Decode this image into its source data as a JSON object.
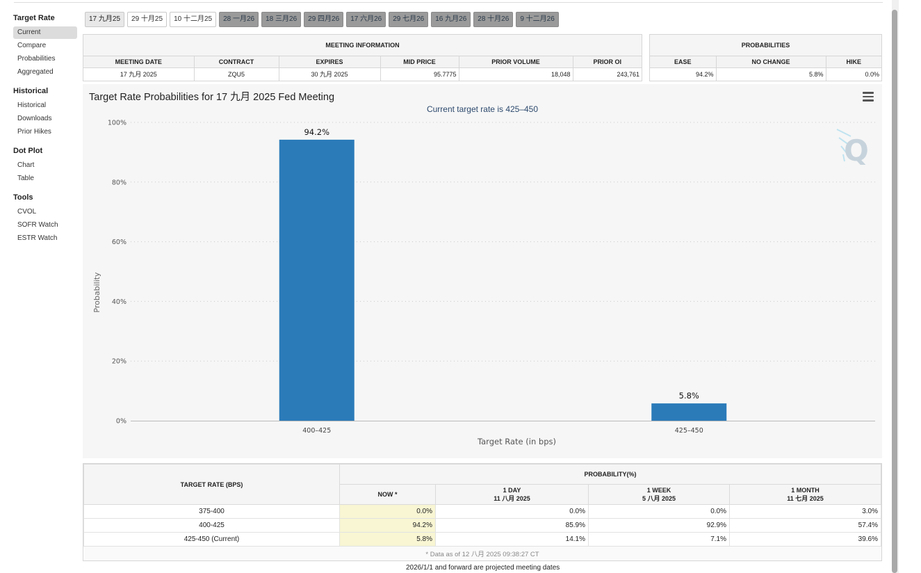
{
  "sidebar": {
    "groups": [
      {
        "heading": "Target Rate",
        "items": [
          "Current",
          "Compare",
          "Probabilities",
          "Aggregated"
        ]
      },
      {
        "heading": "Historical",
        "items": [
          "Historical",
          "Downloads",
          "Prior Hikes"
        ]
      },
      {
        "heading": "Dot Plot",
        "items": [
          "Chart",
          "Table"
        ]
      },
      {
        "heading": "Tools",
        "items": [
          "CVOL",
          "SOFR Watch",
          "ESTR Watch"
        ]
      }
    ],
    "active_item": "Current"
  },
  "tabs": [
    "17 九月25",
    "29 十月25",
    "10 十二月25",
    "28 一月26",
    "18 三月26",
    "29 四月26",
    "17 六月26",
    "29 七月26",
    "16 九月26",
    "28 十月26",
    "9 十二月26"
  ],
  "meeting_info": {
    "caption": "MEETING INFORMATION",
    "headers": [
      "MEETING DATE",
      "CONTRACT",
      "EXPIRES",
      "MID PRICE",
      "PRIOR VOLUME",
      "PRIOR OI"
    ],
    "row": [
      "17 九月 2025",
      "ZQU5",
      "30 九月 2025",
      "95.7775",
      "18,048",
      "243,761"
    ]
  },
  "probabilities": {
    "caption": "PROBABILITIES",
    "headers": [
      "EASE",
      "NO CHANGE",
      "HIKE"
    ],
    "row": [
      "94.2%",
      "5.8%",
      "0.0%"
    ]
  },
  "chart": {
    "title": "Target Rate Probabilities for 17 九月 2025 Fed Meeting",
    "subtitle": "Current target rate is 425–450",
    "menu_icon": "hamburger-menu-icon",
    "watermark": "Q",
    "bar_color": "#2b7bb9"
  },
  "chart_data": {
    "type": "bar",
    "categories": [
      "400–425",
      "425–450"
    ],
    "values": [
      94.2,
      5.8
    ],
    "data_labels": [
      "94.2%",
      "5.8%"
    ],
    "title": "Target Rate Probabilities for 17 九月 2025 Fed Meeting",
    "subtitle": "Current target rate is 425–450",
    "xlabel": "Target Rate (in bps)",
    "ylabel": "Probability",
    "ylim": [
      0,
      100
    ],
    "yticks": [
      "0%",
      "20%",
      "40%",
      "60%",
      "80%",
      "100%"
    ],
    "grid": true,
    "legend": "none"
  },
  "rate_table": {
    "col_target": "TARGET RATE (BPS)",
    "col_prob": "PROBABILITY(%)",
    "sub_headers": [
      {
        "label": "NOW *",
        "date": ""
      },
      {
        "label": "1 DAY",
        "date": "11 八月 2025"
      },
      {
        "label": "1 WEEK",
        "date": "5 八月 2025"
      },
      {
        "label": "1 MONTH",
        "date": "11 七月 2025"
      }
    ],
    "rows": [
      {
        "rate": "375-400",
        "now": "0.0%",
        "day": "0.0%",
        "week": "0.0%",
        "month": "3.0%"
      },
      {
        "rate": "400-425",
        "now": "94.2%",
        "day": "85.9%",
        "week": "92.9%",
        "month": "57.4%"
      },
      {
        "rate": "425-450 (Current)",
        "now": "5.8%",
        "day": "14.1%",
        "week": "7.1%",
        "month": "39.6%"
      }
    ],
    "note": "* Data as of 12 八月 2025 09:38:27 CT"
  },
  "footer": "2026/1/1 and forward are projected meeting dates"
}
